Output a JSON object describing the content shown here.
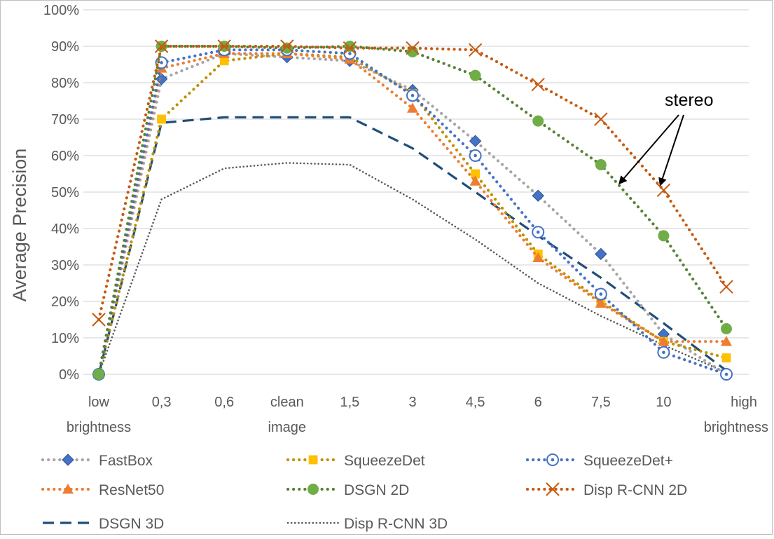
{
  "chart_data": {
    "type": "line",
    "ylabel": "Average Precision",
    "xlabel": "",
    "ylim": [
      0,
      100
    ],
    "yticks": [
      "0%",
      "10%",
      "20%",
      "30%",
      "40%",
      "50%",
      "60%",
      "70%",
      "80%",
      "90%",
      "100%"
    ],
    "categories": [
      [
        "low",
        "brightness"
      ],
      [
        "0,3"
      ],
      [
        "0,6"
      ],
      [
        "clean",
        "image"
      ],
      [
        "1,5"
      ],
      [
        "3"
      ],
      [
        "4,5"
      ],
      [
        "6"
      ],
      [
        "7,5"
      ],
      [
        "10"
      ],
      [
        "high",
        "brightness"
      ]
    ],
    "grid": true,
    "legend_position": "bottom",
    "annotation": "stereo",
    "series": [
      {
        "name": "FastBox",
        "color": "#a5a5a5",
        "marker": "diamond",
        "marker_color": "#4472c4",
        "dash": "dotted",
        "values": [
          0,
          81,
          88,
          87,
          86,
          78,
          64,
          49,
          33,
          11,
          0
        ]
      },
      {
        "name": "SqueezeDet",
        "color": "#bf9000",
        "marker": "square",
        "marker_color": "#ffc000",
        "dash": "dotted",
        "values": [
          0,
          70,
          86,
          88,
          87,
          77,
          55,
          33,
          20,
          9,
          4.5
        ]
      },
      {
        "name": "SqueezeDet+",
        "color": "#4472c4",
        "marker": "circle-dot",
        "marker_color": "#4472c4",
        "dash": "dotted",
        "values": [
          0,
          85.5,
          89,
          89,
          88,
          76.5,
          60,
          39,
          22,
          6,
          0
        ]
      },
      {
        "name": "ResNet50",
        "color": "#ed7d31",
        "marker": "triangle",
        "marker_color": "#ed7d31",
        "dash": "dotted",
        "values": [
          0,
          84,
          88,
          88,
          86.5,
          73,
          53,
          32,
          19.5,
          9,
          9
        ]
      },
      {
        "name": "DSGN 2D",
        "color": "#548235",
        "marker": "circle",
        "marker_color": "#70ad47",
        "dash": "dotted",
        "values": [
          0,
          90,
          90,
          89.5,
          90,
          88.5,
          82,
          69.5,
          57.5,
          38,
          12.5
        ]
      },
      {
        "name": "Disp R-CNN 2D",
        "color": "#c55a11",
        "marker": "x",
        "marker_color": "#c55a11",
        "dash": "dotted",
        "values": [
          15,
          90,
          90,
          90,
          89.5,
          89.5,
          89,
          79.5,
          70,
          50.5,
          24
        ]
      },
      {
        "name": "DSGN 3D",
        "color": "#1f4e79",
        "marker": "none",
        "marker_color": "#1f4e79",
        "dash": "dashed",
        "values": [
          0,
          69,
          70.5,
          70.5,
          70.5,
          62,
          50,
          38,
          26.5,
          14,
          1
        ]
      },
      {
        "name": "Disp R-CNN 3D",
        "color": "#595959",
        "marker": "none",
        "marker_color": "#595959",
        "dash": "fine-dotted",
        "values": [
          0,
          48,
          56.5,
          58,
          57.5,
          48,
          37,
          25,
          16,
          8,
          0.5
        ]
      }
    ]
  }
}
